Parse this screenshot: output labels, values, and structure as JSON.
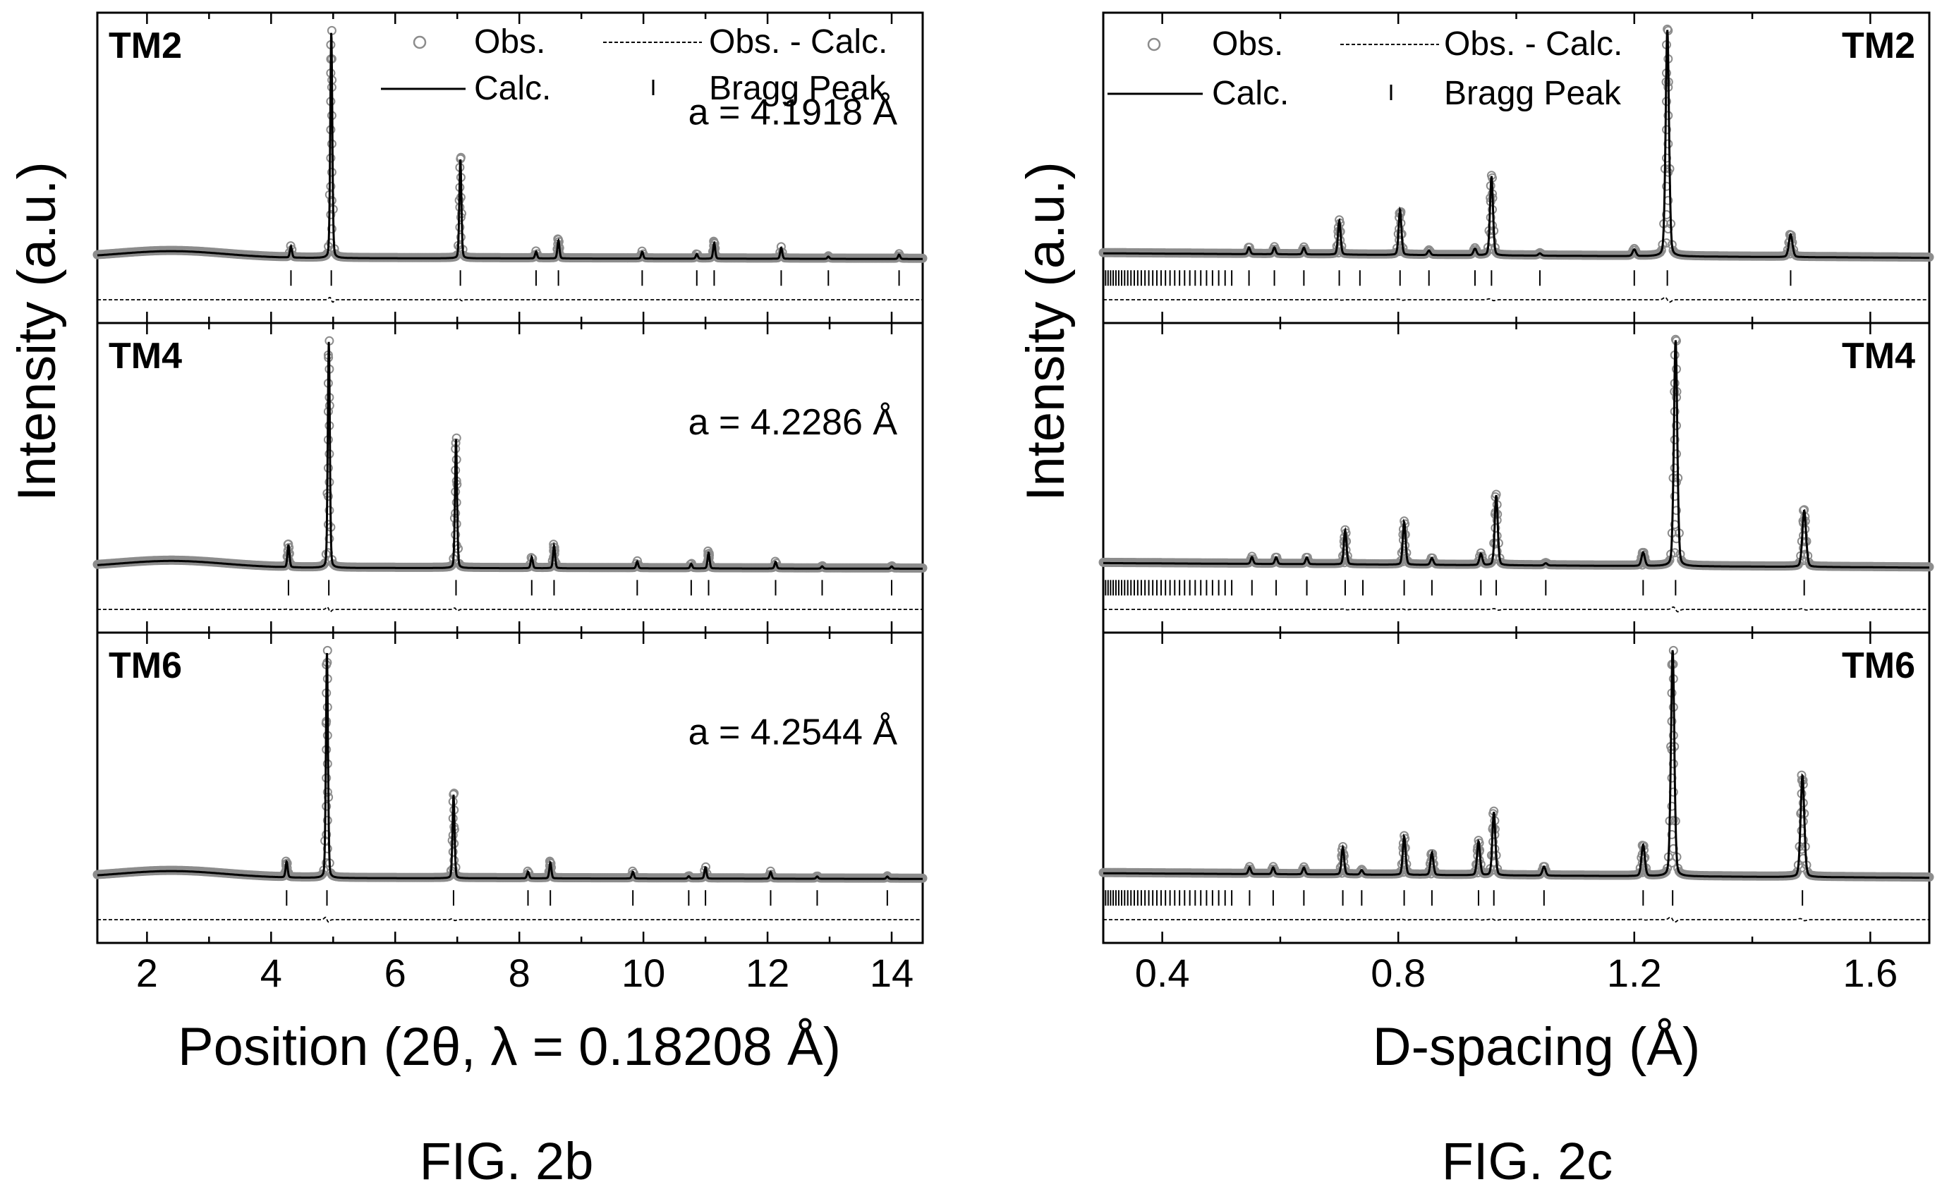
{
  "figures": [
    {
      "caption": "FIG. 2b",
      "xlabel": "Position (2θ, λ = 0.18208 Å)",
      "ylabel": "Intensity (a.u.)",
      "xlim": [
        1.2,
        14.5
      ],
      "xticks": [
        "2",
        "4",
        "6",
        "8",
        "10",
        "12",
        "14"
      ],
      "legend": {
        "obs": "Obs.",
        "calc": "Calc.",
        "diff": "Obs. - Calc.",
        "bragg": "Bragg Peak"
      }
    },
    {
      "caption": "FIG. 2c",
      "xlabel": "D-spacing (Å)",
      "ylabel": "Intensity (a.u.)",
      "xlim": [
        0.3,
        1.7
      ],
      "xticks": [
        "0.4",
        "0.8",
        "1.2",
        "1.6"
      ],
      "legend": {
        "obs": "Obs.",
        "calc": "Calc.",
        "diff": "Obs. - Calc.",
        "bragg": "Bragg Peak"
      }
    }
  ],
  "colors": {
    "axis": "#000000",
    "obs_marker": "#8c8c8c",
    "calc_line": "#000000",
    "background": "#ffffff"
  },
  "chart_data": [
    {
      "type": "line",
      "figure": "FIG. 2b",
      "panel": "TM2",
      "annotation": "a = 4.1918 Å",
      "x_quantity": "2θ (deg)",
      "background_level": 0.08,
      "peaks": [
        {
          "x": 4.32,
          "intensity": 0.05
        },
        {
          "x": 4.97,
          "intensity": 1.0
        },
        {
          "x": 7.05,
          "intensity": 0.44
        },
        {
          "x": 8.27,
          "intensity": 0.03
        },
        {
          "x": 8.63,
          "intensity": 0.08
        },
        {
          "x": 9.98,
          "intensity": 0.03
        },
        {
          "x": 10.86,
          "intensity": 0.02
        },
        {
          "x": 11.14,
          "intensity": 0.07
        },
        {
          "x": 12.22,
          "intensity": 0.05
        },
        {
          "x": 12.98,
          "intensity": 0.01
        },
        {
          "x": 14.12,
          "intensity": 0.02
        }
      ],
      "bragg_positions": [
        4.32,
        4.97,
        7.05,
        8.27,
        8.63,
        9.98,
        10.86,
        11.14,
        12.22,
        12.98,
        14.12
      ]
    },
    {
      "type": "line",
      "figure": "FIG. 2b",
      "panel": "TM4",
      "annotation": "a = 4.2286 Å",
      "x_quantity": "2θ (deg)",
      "background_level": 0.08,
      "peaks": [
        {
          "x": 4.28,
          "intensity": 0.1
        },
        {
          "x": 4.93,
          "intensity": 1.0
        },
        {
          "x": 6.98,
          "intensity": 0.57
        },
        {
          "x": 8.2,
          "intensity": 0.05
        },
        {
          "x": 8.56,
          "intensity": 0.1
        },
        {
          "x": 9.9,
          "intensity": 0.03
        },
        {
          "x": 10.77,
          "intensity": 0.02
        },
        {
          "x": 11.05,
          "intensity": 0.07
        },
        {
          "x": 12.13,
          "intensity": 0.03
        },
        {
          "x": 12.88,
          "intensity": 0.01
        },
        {
          "x": 14.0,
          "intensity": 0.01
        }
      ],
      "bragg_positions": [
        4.28,
        4.93,
        6.98,
        8.2,
        8.56,
        9.9,
        10.77,
        11.05,
        12.13,
        12.88,
        14.0
      ]
    },
    {
      "type": "line",
      "figure": "FIG. 2b",
      "panel": "TM6",
      "annotation": "a = 4.2544 Å",
      "x_quantity": "2θ (deg)",
      "background_level": 0.08,
      "peaks": [
        {
          "x": 4.25,
          "intensity": 0.07
        },
        {
          "x": 4.9,
          "intensity": 1.0
        },
        {
          "x": 6.94,
          "intensity": 0.37
        },
        {
          "x": 8.14,
          "intensity": 0.03
        },
        {
          "x": 8.5,
          "intensity": 0.07
        },
        {
          "x": 9.83,
          "intensity": 0.03
        },
        {
          "x": 10.73,
          "intensity": 0.01
        },
        {
          "x": 11.0,
          "intensity": 0.05
        },
        {
          "x": 12.05,
          "intensity": 0.03
        },
        {
          "x": 12.8,
          "intensity": 0.01
        },
        {
          "x": 13.93,
          "intensity": 0.01
        }
      ],
      "bragg_positions": [
        4.25,
        4.9,
        6.94,
        8.14,
        8.5,
        9.83,
        10.73,
        11.0,
        12.05,
        12.8,
        13.93
      ]
    },
    {
      "type": "line",
      "figure": "FIG. 2c",
      "panel": "TM2",
      "x_quantity": "D-spacing (Å)",
      "background_level": 0.1,
      "peaks": [
        {
          "x": 0.547,
          "intensity": 0.03
        },
        {
          "x": 0.59,
          "intensity": 0.03
        },
        {
          "x": 0.64,
          "intensity": 0.03
        },
        {
          "x": 0.7,
          "intensity": 0.15
        },
        {
          "x": 0.803,
          "intensity": 0.2
        },
        {
          "x": 0.852,
          "intensity": 0.02
        },
        {
          "x": 0.93,
          "intensity": 0.03
        },
        {
          "x": 0.958,
          "intensity": 0.35
        },
        {
          "x": 1.04,
          "intensity": 0.01
        },
        {
          "x": 1.2,
          "intensity": 0.03
        },
        {
          "x": 1.256,
          "intensity": 1.0
        },
        {
          "x": 1.465,
          "intensity": 0.1
        }
      ],
      "bragg_positions": [
        0.547,
        0.59,
        0.64,
        0.7,
        0.735,
        0.803,
        0.852,
        0.93,
        0.958,
        1.04,
        1.2,
        1.256,
        1.465
      ],
      "bragg_dense_region": [
        0.3,
        0.52
      ]
    },
    {
      "type": "line",
      "figure": "FIG. 2c",
      "panel": "TM4",
      "x_quantity": "D-spacing (Å)",
      "background_level": 0.1,
      "peaks": [
        {
          "x": 0.552,
          "intensity": 0.03
        },
        {
          "x": 0.593,
          "intensity": 0.03
        },
        {
          "x": 0.645,
          "intensity": 0.03
        },
        {
          "x": 0.71,
          "intensity": 0.15
        },
        {
          "x": 0.81,
          "intensity": 0.19
        },
        {
          "x": 0.857,
          "intensity": 0.03
        },
        {
          "x": 0.94,
          "intensity": 0.05
        },
        {
          "x": 0.966,
          "intensity": 0.31
        },
        {
          "x": 1.05,
          "intensity": 0.01
        },
        {
          "x": 1.215,
          "intensity": 0.06
        },
        {
          "x": 1.27,
          "intensity": 1.0
        },
        {
          "x": 1.488,
          "intensity": 0.25
        }
      ],
      "bragg_positions": [
        0.552,
        0.593,
        0.645,
        0.71,
        0.74,
        0.81,
        0.857,
        0.94,
        0.966,
        1.05,
        1.215,
        1.27,
        1.488
      ],
      "bragg_dense_region": [
        0.3,
        0.52
      ]
    },
    {
      "type": "line",
      "figure": "FIG. 2c",
      "panel": "TM6",
      "x_quantity": "D-spacing (Å)",
      "background_level": 0.1,
      "peaks": [
        {
          "x": 0.548,
          "intensity": 0.03
        },
        {
          "x": 0.588,
          "intensity": 0.03
        },
        {
          "x": 0.64,
          "intensity": 0.03
        },
        {
          "x": 0.706,
          "intensity": 0.12
        },
        {
          "x": 0.738,
          "intensity": 0.02
        },
        {
          "x": 0.81,
          "intensity": 0.17
        },
        {
          "x": 0.857,
          "intensity": 0.1
        },
        {
          "x": 0.936,
          "intensity": 0.15
        },
        {
          "x": 0.962,
          "intensity": 0.28
        },
        {
          "x": 1.047,
          "intensity": 0.04
        },
        {
          "x": 1.215,
          "intensity": 0.14
        },
        {
          "x": 1.265,
          "intensity": 1.0
        },
        {
          "x": 1.485,
          "intensity": 0.45
        }
      ],
      "bragg_positions": [
        0.548,
        0.588,
        0.64,
        0.706,
        0.738,
        0.81,
        0.857,
        0.936,
        0.962,
        1.047,
        1.215,
        1.265,
        1.485
      ],
      "bragg_dense_region": [
        0.3,
        0.52
      ]
    }
  ]
}
